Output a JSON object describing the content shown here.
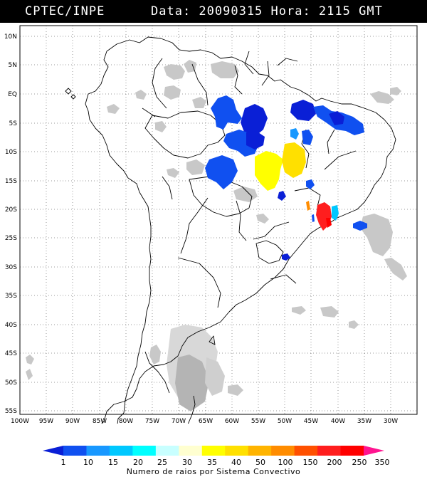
{
  "header": {
    "source": "CPTEC/INPE",
    "datetime": "Data: 20090315 Hora: 2115 GMT"
  },
  "map": {
    "lat_labels": [
      "10N",
      "5N",
      "EQ",
      "5S",
      "10S",
      "15S",
      "20S",
      "25S",
      "30S",
      "35S",
      "40S",
      "45S",
      "50S",
      "55S"
    ],
    "lon_labels": [
      "100W",
      "95W",
      "90W",
      "85W",
      "80W",
      "75W",
      "70W",
      "65W",
      "60W",
      "55W",
      "50W",
      "45W",
      "40W",
      "35W",
      "30W"
    ],
    "background_color": "#ffffff",
    "cloud_color": "#c8c8c8",
    "boundary_color": "#000000"
  },
  "legend": {
    "caption": "Numero de raios por Sistema Convectivo",
    "ticks": [
      "1",
      "10",
      "15",
      "20",
      "25",
      "30",
      "35",
      "40",
      "50",
      "100",
      "150",
      "200",
      "250",
      "350"
    ],
    "colors": [
      "#0a1fd6",
      "#1050f0",
      "#1898ff",
      "#00c8ff",
      "#00ffff",
      "#c8ffff",
      "#ffffd0",
      "#ffff00",
      "#ffe000",
      "#ffb400",
      "#ff8c00",
      "#ff5000",
      "#ff1e1e",
      "#ff0000",
      "#ff1490"
    ]
  }
}
